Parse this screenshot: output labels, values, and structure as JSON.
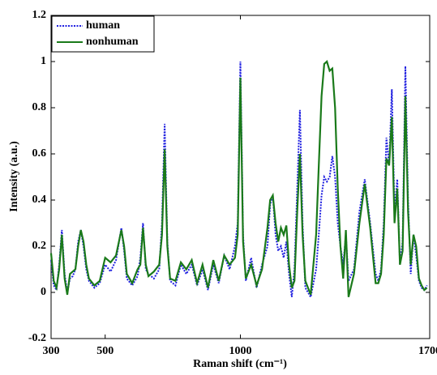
{
  "chart_data": {
    "type": "line",
    "xlabel": "Raman shift (cm⁻¹)",
    "ylabel": "Intensity (a.u.)",
    "x": [
      300,
      310,
      320,
      330,
      340,
      350,
      360,
      370,
      380,
      390,
      400,
      410,
      420,
      430,
      440,
      460,
      480,
      500,
      520,
      540,
      560,
      570,
      580,
      600,
      620,
      630,
      640,
      650,
      660,
      680,
      700,
      710,
      720,
      730,
      740,
      760,
      780,
      800,
      820,
      840,
      860,
      880,
      900,
      920,
      940,
      960,
      980,
      990,
      1000,
      1010,
      1020,
      1040,
      1060,
      1080,
      1100,
      1110,
      1120,
      1130,
      1140,
      1150,
      1160,
      1170,
      1180,
      1190,
      1200,
      1210,
      1220,
      1230,
      1240,
      1260,
      1280,
      1290,
      1300,
      1310,
      1320,
      1330,
      1340,
      1350,
      1360,
      1370,
      1380,
      1390,
      1400,
      1420,
      1440,
      1460,
      1480,
      1500,
      1510,
      1520,
      1530,
      1540,
      1550,
      1560,
      1570,
      1580,
      1590,
      1600,
      1610,
      1620,
      1630,
      1640,
      1650,
      1660,
      1670,
      1680,
      1690
    ],
    "series": [
      {
        "name": "human",
        "color": "#1f1fe0",
        "dash": true,
        "values": [
          0.14,
          0.03,
          0.01,
          0.12,
          0.27,
          0.08,
          0.0,
          0.06,
          0.07,
          0.1,
          0.22,
          0.27,
          0.2,
          0.1,
          0.05,
          0.02,
          0.04,
          0.12,
          0.09,
          0.14,
          0.28,
          0.18,
          0.06,
          0.03,
          0.07,
          0.15,
          0.3,
          0.1,
          0.08,
          0.06,
          0.1,
          0.3,
          0.73,
          0.22,
          0.05,
          0.03,
          0.12,
          0.08,
          0.12,
          0.03,
          0.1,
          0.01,
          0.12,
          0.04,
          0.16,
          0.1,
          0.2,
          0.3,
          1.0,
          0.25,
          0.05,
          0.15,
          0.02,
          0.12,
          0.2,
          0.38,
          0.42,
          0.25,
          0.18,
          0.2,
          0.15,
          0.22,
          0.08,
          -0.02,
          0.1,
          0.45,
          0.79,
          0.3,
          0.02,
          -0.02,
          0.1,
          0.25,
          0.42,
          0.5,
          0.48,
          0.5,
          0.59,
          0.5,
          0.3,
          0.2,
          0.12,
          0.25,
          0.05,
          0.1,
          0.35,
          0.49,
          0.3,
          0.08,
          0.05,
          0.1,
          0.3,
          0.67,
          0.55,
          0.88,
          0.35,
          0.49,
          0.12,
          0.22,
          0.98,
          0.4,
          0.08,
          0.25,
          0.16,
          0.05,
          0.02,
          0.01,
          0.03
        ]
      },
      {
        "name": "nonhuman",
        "color": "#1a7a1a",
        "dash": false,
        "values": [
          0.17,
          0.05,
          0.02,
          0.1,
          0.25,
          0.06,
          -0.01,
          0.08,
          0.09,
          0.1,
          0.2,
          0.27,
          0.22,
          0.12,
          0.06,
          0.03,
          0.05,
          0.15,
          0.13,
          0.16,
          0.27,
          0.2,
          0.08,
          0.04,
          0.1,
          0.12,
          0.28,
          0.12,
          0.07,
          0.09,
          0.12,
          0.25,
          0.62,
          0.2,
          0.06,
          0.05,
          0.13,
          0.1,
          0.14,
          0.04,
          0.12,
          0.02,
          0.14,
          0.05,
          0.16,
          0.12,
          0.15,
          0.25,
          0.93,
          0.22,
          0.06,
          0.12,
          0.03,
          0.1,
          0.28,
          0.4,
          0.42,
          0.3,
          0.22,
          0.28,
          0.25,
          0.29,
          0.12,
          0.02,
          0.05,
          0.35,
          0.6,
          0.25,
          0.05,
          -0.01,
          0.25,
          0.55,
          0.85,
          0.99,
          1.0,
          0.96,
          0.97,
          0.8,
          0.45,
          0.2,
          0.06,
          0.27,
          -0.02,
          0.08,
          0.3,
          0.47,
          0.28,
          0.04,
          0.04,
          0.08,
          0.25,
          0.58,
          0.55,
          0.76,
          0.3,
          0.45,
          0.12,
          0.18,
          0.85,
          0.35,
          0.12,
          0.25,
          0.2,
          0.06,
          0.03,
          0.01,
          0.02
        ]
      }
    ],
    "xlim": [
      300,
      1700
    ],
    "xticks": [
      300,
      500,
      1000,
      1700
    ],
    "ylim": [
      -0.2,
      1.2
    ],
    "yticks": [
      -0.2,
      0,
      0.2,
      0.4,
      0.6,
      0.8,
      1,
      1.2
    ],
    "legend": "upper-left"
  }
}
